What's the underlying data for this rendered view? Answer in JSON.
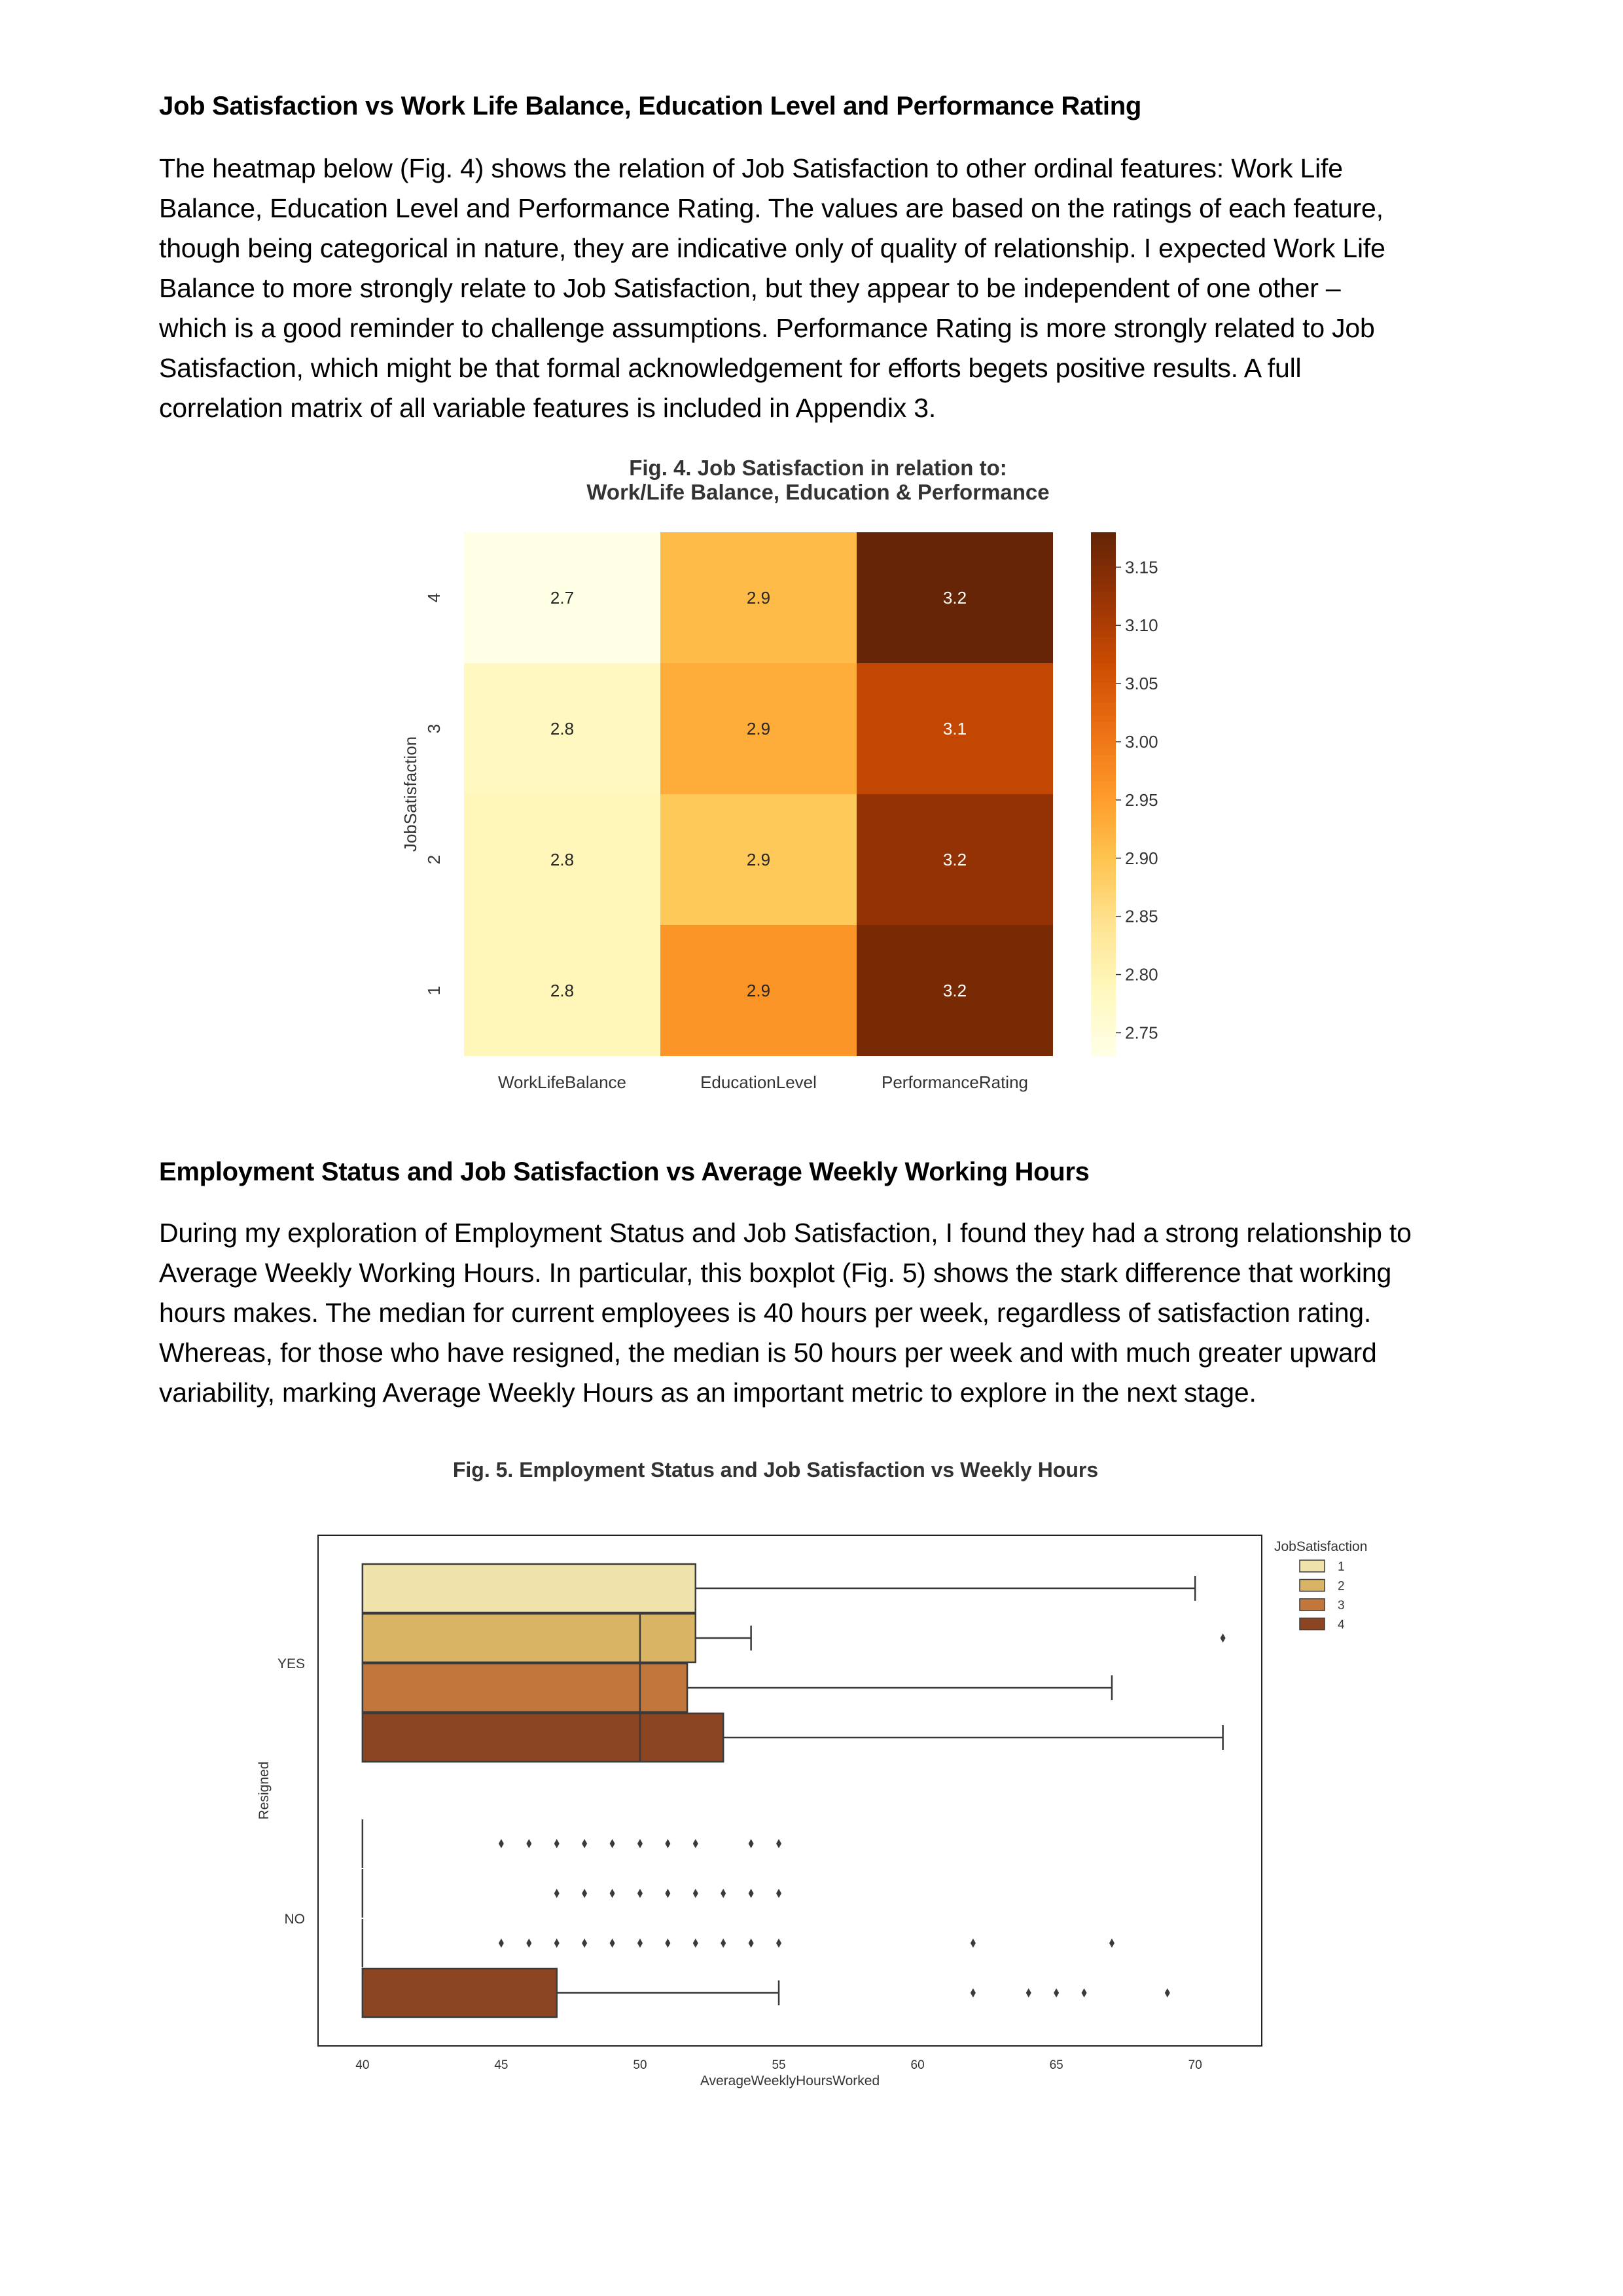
{
  "section1": {
    "heading": "Job Satisfaction vs Work Life Balance, Education Level and Performance Rating",
    "lines": [
      "The heatmap below (Fig. 4) shows the relation of Job Satisfaction to other ordinal features: Work Life",
      "Balance, Education Level and Performance Rating. The values are based on the ratings of each feature,",
      "though being categorical in nature, they are indicative only of quality of relationship. I expected Work Life",
      "Balance to more strongly relate to Job Satisfaction, but they appear to be independent of one other –",
      "which is a good reminder to challenge assumptions. Performance Rating is more strongly related to Job",
      "Satisfaction, which might be that formal acknowledgement for efforts begets positive results. A full",
      "correlation matrix of all variable features is included in Appendix 3."
    ]
  },
  "section2": {
    "heading": "Employment Status and Job Satisfaction vs Average Weekly Working Hours",
    "lines": [
      "During my exploration of Employment Status and Job Satisfaction, I found they had a strong relationship to",
      "Average Weekly Working Hours. In particular, this boxplot (Fig. 5) shows the stark difference that working",
      "hours makes. The median for current employees is 40 hours per week, regardless of satisfaction rating.",
      "Whereas, for those who have resigned, the median is 50 hours per week and with much greater upward",
      "variability, marking Average Weekly Hours as an important metric to explore in the next stage."
    ]
  },
  "chart_data": [
    {
      "type": "heatmap",
      "title": [
        "Fig. 4. Job Satisfaction in relation to:",
        "Work/Life Balance, Education & Performance"
      ],
      "ylabel": "JobSatisfaction",
      "xlabel": "",
      "x_categories": [
        "WorkLifeBalance",
        "EducationLevel",
        "PerformanceRating"
      ],
      "y_categories": [
        "4",
        "3",
        "2",
        "1"
      ],
      "values": [
        [
          2.73,
          2.91,
          3.18
        ],
        [
          2.78,
          2.93,
          3.08
        ],
        [
          2.79,
          2.89,
          3.13
        ],
        [
          2.79,
          2.96,
          3.16
        ]
      ],
      "annotations": [
        [
          "2.7",
          "2.9",
          "3.2"
        ],
        [
          "2.8",
          "2.9",
          "3.1"
        ],
        [
          "2.8",
          "2.9",
          "3.2"
        ],
        [
          "2.8",
          "2.9",
          "3.2"
        ]
      ],
      "colorbar": {
        "min": 2.73,
        "max": 3.18,
        "ticks": [
          "3.15",
          "3.10",
          "3.05",
          "3.00",
          "2.95",
          "2.90",
          "2.85",
          "2.80",
          "2.75"
        ]
      },
      "colormap": [
        "#ffffe5",
        "#fff7bc",
        "#fee391",
        "#fec44f",
        "#fe9929",
        "#ec7014",
        "#cc4c02",
        "#993404",
        "#662506"
      ]
    },
    {
      "type": "boxplot",
      "title": "Fig. 5. Employment Status and Job Satisfaction vs Weekly Hours",
      "xlabel": "AverageWeeklyHoursWorked",
      "ylabel": "Resigned",
      "xlim": [
        38.4,
        72.4
      ],
      "xticks": [
        "40",
        "45",
        "50",
        "55",
        "60",
        "65",
        "70"
      ],
      "categories": [
        "YES",
        "NO"
      ],
      "legend": {
        "title": "JobSatisfaction",
        "position": "upper right, outside",
        "entries": [
          "1",
          "2",
          "3",
          "4"
        ]
      },
      "colors": [
        "#efe3ab",
        "#d9b465",
        "#c1773c",
        "#8c4522"
      ],
      "boxes": [
        {
          "group": "YES",
          "hue": "1",
          "q1": 40,
          "median": 52,
          "q3": 52,
          "whisker_low": 40,
          "whisker_high": 70,
          "outliers": []
        },
        {
          "group": "YES",
          "hue": "2",
          "q1": 40,
          "median": 50,
          "q3": 52,
          "whisker_low": 40,
          "whisker_high": 54,
          "outliers": [
            71
          ]
        },
        {
          "group": "YES",
          "hue": "3",
          "q1": 40,
          "median": 50,
          "q3": 51.7,
          "whisker_low": 40,
          "whisker_high": 67,
          "outliers": []
        },
        {
          "group": "YES",
          "hue": "4",
          "q1": 40,
          "median": 50,
          "q3": 53,
          "whisker_low": 40,
          "whisker_high": 71,
          "outliers": []
        },
        {
          "group": "NO",
          "hue": "1",
          "q1": 40,
          "median": 40,
          "q3": 40,
          "whisker_low": 40,
          "whisker_high": 40,
          "outliers": [
            45,
            46,
            47,
            48,
            49,
            50,
            51,
            52,
            54,
            55
          ]
        },
        {
          "group": "NO",
          "hue": "2",
          "q1": 40,
          "median": 40,
          "q3": 40,
          "whisker_low": 40,
          "whisker_high": 40,
          "outliers": [
            47,
            48,
            49,
            50,
            51,
            52,
            53,
            54,
            55
          ]
        },
        {
          "group": "NO",
          "hue": "3",
          "q1": 40,
          "median": 40,
          "q3": 40,
          "whisker_low": 40,
          "whisker_high": 40,
          "outliers": [
            45,
            46,
            47,
            48,
            49,
            50,
            51,
            52,
            53,
            54,
            55,
            62,
            67
          ]
        },
        {
          "group": "NO",
          "hue": "4",
          "q1": 40,
          "median": 40,
          "q3": 47,
          "whisker_low": 40,
          "whisker_high": 55,
          "outliers": [
            62,
            64,
            65,
            66,
            69
          ]
        }
      ]
    }
  ]
}
